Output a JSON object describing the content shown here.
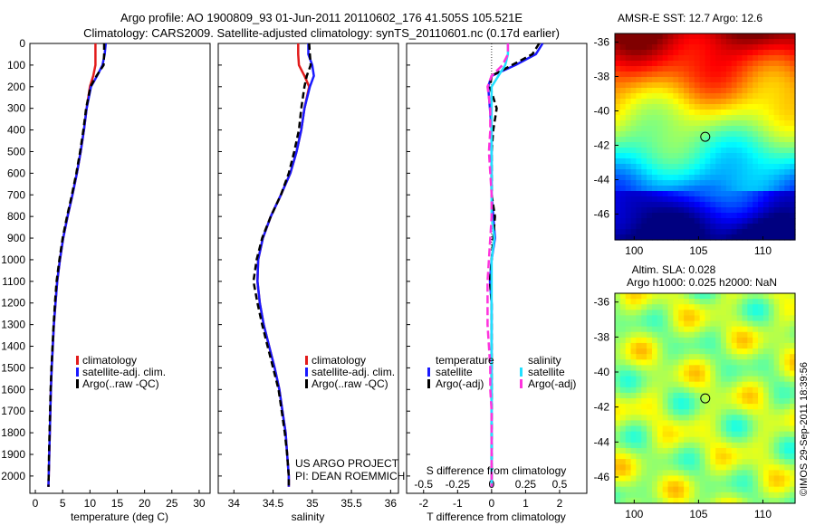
{
  "header": {
    "title_line1": "Argo profile: AO 1900809_93 01-Jun-2011 20110602_176 41.505S 105.521E",
    "title_line2": "Climatology: CARS2009. Satellite-adjusted climatology: synTS_20110601.nc (0.17d earlier)"
  },
  "colors": {
    "climatology": "#e21b1b",
    "satellite": "#1a1aff",
    "argo": "#000000",
    "sal_satellite": "#22e0ff",
    "sal_argo": "#ff33dd"
  },
  "chart_data": [
    {
      "type": "line",
      "id": "temperature",
      "xlabel": "temperature (deg C)",
      "ylabel": "",
      "xlim": [
        -1,
        32
      ],
      "ylim": [
        2080,
        0
      ],
      "xticks": [
        "0",
        "5",
        "10",
        "15",
        "20",
        "25",
        "30"
      ],
      "yticks": [
        "0",
        "100",
        "200",
        "300",
        "400",
        "500",
        "600",
        "700",
        "800",
        "900",
        "1000",
        "1100",
        "1200",
        "1300",
        "1400",
        "1500",
        "1600",
        "1700",
        "1800",
        "1900",
        "2000"
      ],
      "depth": [
        0,
        50,
        100,
        150,
        200,
        300,
        400,
        500,
        600,
        700,
        800,
        900,
        1000,
        1100,
        1200,
        1300,
        1400,
        1500,
        1600,
        1700,
        1800,
        1900,
        2000,
        2050
      ],
      "series": [
        {
          "name": "climatology",
          "values": [
            11.0,
            11.0,
            11.0,
            10.6,
            10.0,
            9.4,
            8.9,
            8.3,
            7.6,
            6.8,
            5.9,
            5.1,
            4.5,
            4.0,
            3.7,
            3.4,
            3.2,
            3.0,
            2.85,
            2.75,
            2.65,
            2.55,
            2.45,
            2.4
          ]
        },
        {
          "name": "satellite-adj. clim.",
          "values": [
            12.9,
            12.7,
            12.3,
            11.3,
            10.2,
            9.4,
            8.9,
            8.3,
            7.6,
            6.8,
            5.9,
            5.1,
            4.5,
            4.0,
            3.7,
            3.4,
            3.2,
            3.0,
            2.85,
            2.75,
            2.65,
            2.55,
            2.45,
            2.4
          ]
        },
        {
          "name": "Argo(..raw -QC)",
          "values": [
            12.6,
            12.6,
            12.5,
            11.2,
            10.1,
            9.3,
            8.8,
            8.2,
            7.5,
            6.7,
            5.8,
            5.0,
            4.4,
            3.9,
            3.6,
            3.35,
            3.15,
            2.95,
            2.8,
            2.7,
            2.6,
            2.5,
            2.45,
            2.4
          ]
        }
      ],
      "legend": {
        "placement": "lower-right",
        "items": [
          "climatology",
          "satellite-adj. clim.",
          "Argo(..raw -QC)"
        ]
      }
    },
    {
      "type": "line",
      "id": "salinity",
      "xlabel": "salinity",
      "ylabel": "",
      "xlim": [
        33.8,
        36.1
      ],
      "ylim": [
        2080,
        0
      ],
      "xticks": [
        "34",
        "34.5",
        "35",
        "35.5",
        "36"
      ],
      "depth": [
        0,
        50,
        100,
        150,
        200,
        300,
        400,
        500,
        600,
        700,
        800,
        900,
        1000,
        1100,
        1200,
        1300,
        1400,
        1500,
        1600,
        1700,
        1800,
        1900,
        2000,
        2050
      ],
      "series": [
        {
          "name": "climatology",
          "values": [
            34.82,
            34.82,
            34.83,
            34.9,
            34.96,
            34.9,
            34.86,
            34.8,
            34.72,
            34.6,
            34.47,
            34.37,
            34.31,
            34.3,
            34.33,
            34.38,
            34.45,
            34.52,
            34.58,
            34.62,
            34.66,
            34.68,
            34.7,
            34.7
          ]
        },
        {
          "name": "satellite-adj. clim.",
          "values": [
            34.95,
            34.95,
            35.0,
            35.02,
            34.97,
            34.9,
            34.86,
            34.8,
            34.72,
            34.6,
            34.47,
            34.37,
            34.31,
            34.3,
            34.33,
            34.38,
            34.45,
            34.52,
            34.58,
            34.62,
            34.66,
            34.68,
            34.7,
            34.7
          ]
        },
        {
          "name": "Argo(..raw -QC)",
          "values": [
            34.96,
            34.97,
            34.98,
            34.93,
            34.9,
            34.86,
            34.83,
            34.77,
            34.7,
            34.6,
            34.47,
            34.36,
            34.29,
            34.25,
            34.3,
            34.36,
            34.43,
            34.5,
            34.57,
            34.61,
            34.65,
            34.68,
            34.7,
            34.7
          ]
        }
      ],
      "legend": {
        "placement": "lower-right",
        "items": [
          "climatology",
          "satellite-adj. clim.",
          "Argo(..raw -QC)"
        ]
      },
      "annotation": [
        "US ARGO PROJECT",
        "PI: DEAN ROEMMICH"
      ]
    },
    {
      "type": "line",
      "id": "difference",
      "xlabel": "T difference from climatology",
      "x2label": "S difference from climatology",
      "xlim": [
        -2.5,
        2.8
      ],
      "x2lim": [
        -0.625,
        0.7
      ],
      "ylim": [
        2080,
        0
      ],
      "xticks": [
        "-2",
        "-1",
        "0",
        "1",
        "2"
      ],
      "x2ticks": [
        "-0.5",
        "-0.25",
        "0",
        "0.25",
        "0.5"
      ],
      "depth": [
        0,
        50,
        100,
        150,
        200,
        300,
        400,
        500,
        600,
        700,
        800,
        900,
        1000,
        1100,
        1200,
        1300,
        1400,
        1500,
        1600,
        1700,
        1800,
        1900,
        2000,
        2050
      ],
      "series": [
        {
          "name": "temperature satellite",
          "axis": "T",
          "values": [
            1.5,
            1.3,
            0.7,
            0.0,
            -0.1,
            -0.05,
            0.0,
            0.0,
            0.0,
            0.0,
            0.05,
            0.1,
            0.0,
            -0.05,
            0.0,
            0.0,
            0.0,
            0.0,
            0.0,
            0.0,
            0.0,
            0.0,
            0.0,
            0.0
          ]
        },
        {
          "name": "temperature Argo(-adj)",
          "axis": "T",
          "values": [
            1.4,
            1.2,
            0.6,
            0.0,
            -0.05,
            0.15,
            0.05,
            0.0,
            0.0,
            0.0,
            0.1,
            0.05,
            0.0,
            -0.05,
            0.0,
            0.0,
            0.0,
            0.0,
            0.0,
            0.0,
            0.0,
            0.0,
            0.0,
            0.0
          ]
        },
        {
          "name": "salinity satellite",
          "axis": "S",
          "values": [
            0.12,
            0.12,
            0.1,
            0.05,
            0.0,
            0.0,
            0.0,
            0.0,
            0.0,
            0.0,
            0.0,
            0.02,
            0.0,
            0.0,
            0.0,
            0.0,
            0.0,
            0.0,
            0.0,
            0.0,
            0.0,
            0.0,
            0.0,
            0.0
          ]
        },
        {
          "name": "salinity Argo(-adj)",
          "axis": "S",
          "values": [
            0.12,
            0.12,
            0.08,
            0.0,
            -0.03,
            -0.01,
            -0.01,
            -0.02,
            -0.01,
            0.0,
            0.0,
            -0.01,
            -0.02,
            -0.03,
            -0.03,
            -0.03,
            -0.02,
            -0.01,
            -0.01,
            0.0,
            0.0,
            0.0,
            0.0,
            0.0
          ]
        }
      ],
      "legend": {
        "placement": "lower-center",
        "headers": [
          "temperature",
          "salinity"
        ],
        "items": [
          "satellite",
          "Argo(-adj)",
          "satellite",
          "Argo(-adj)"
        ]
      }
    },
    {
      "type": "heatmap",
      "id": "sst_map",
      "title": "AMSR-E SST: 12.7 Argo: 12.6",
      "xticks": [
        "100",
        "105",
        "110"
      ],
      "yticks": [
        "-36",
        "-38",
        "-40",
        "-42",
        "-44",
        "-46"
      ],
      "xlim": [
        98.5,
        112.5
      ],
      "ylim": [
        -47.5,
        -35.5
      ],
      "marker": {
        "lon": 105.521,
        "lat": -41.505
      }
    },
    {
      "type": "heatmap",
      "id": "sla_map",
      "title_line1": "Altim. SLA: 0.028",
      "title_line2": "Argo h1000: 0.025 h2000: NaN",
      "xticks": [
        "100",
        "105",
        "110"
      ],
      "yticks": [
        "-36",
        "-38",
        "-40",
        "-42",
        "-44",
        "-46"
      ],
      "xlim": [
        98.5,
        112.5
      ],
      "ylim": [
        -47.5,
        -35.5
      ],
      "marker": {
        "lon": 105.521,
        "lat": -41.505
      }
    }
  ],
  "footer": {
    "credit": "©IMOS 29-Sep-2011 18:39:56"
  }
}
